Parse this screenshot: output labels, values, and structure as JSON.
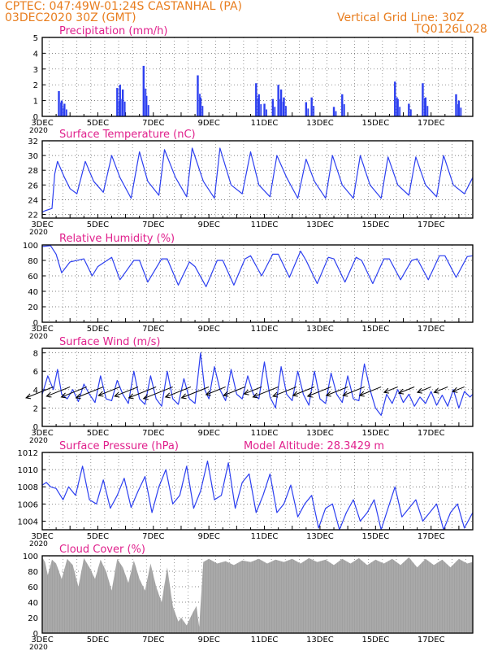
{
  "header": {
    "line1": "CPTEC:   047:49W-01:24S   CASTANHAL (PA)",
    "line2": "03DEC2020 30Z (GMT)",
    "grid_note": "Vertical Grid Line: 30Z",
    "run_code": "TQ0126L028"
  },
  "colors": {
    "header": "#e87d1e",
    "title": "#e0208c",
    "series": "#2c3ff0",
    "cloud": "#a0a0a0",
    "grid": "#555555"
  },
  "chart_data": [
    {
      "id": "precip",
      "type": "bar",
      "title": "Precipitation (mm/h)",
      "ylim": [
        0,
        5
      ],
      "yticks": [
        0,
        1,
        2,
        3,
        4,
        5
      ],
      "x_start_day": 3,
      "x_end_day": 18.5,
      "xtick_labels": [
        "3DEC",
        "5DEC",
        "7DEC",
        "9DEC",
        "11DEC",
        "13DEC",
        "15DEC",
        "17DEC"
      ],
      "xtick_days": [
        3,
        5,
        7,
        9,
        11,
        13,
        15,
        17
      ],
      "year_label": "2020",
      "events": [
        [
          3.6,
          1.6
        ],
        [
          3.7,
          1.0
        ],
        [
          3.8,
          0.8
        ],
        [
          5.7,
          1.8
        ],
        [
          5.8,
          2.0
        ],
        [
          5.9,
          1.7
        ],
        [
          6.65,
          3.2
        ],
        [
          6.75,
          1.3
        ],
        [
          8.6,
          2.6
        ],
        [
          8.7,
          1.2
        ],
        [
          10.7,
          2.1
        ],
        [
          10.8,
          1.4
        ],
        [
          11.0,
          0.8
        ],
        [
          11.3,
          1.1
        ],
        [
          11.5,
          2.0
        ],
        [
          11.6,
          1.7
        ],
        [
          11.7,
          1.2
        ],
        [
          12.5,
          0.9
        ],
        [
          12.7,
          1.2
        ],
        [
          13.5,
          0.6
        ],
        [
          13.8,
          1.4
        ],
        [
          15.7,
          2.2
        ],
        [
          15.8,
          1.1
        ],
        [
          16.2,
          0.8
        ],
        [
          16.7,
          2.1
        ],
        [
          16.8,
          1.2
        ],
        [
          17.9,
          1.4
        ],
        [
          18.0,
          1.0
        ]
      ]
    },
    {
      "id": "temp",
      "type": "line",
      "title": "Surface Temperature (nC)",
      "ylim": [
        21.5,
        32
      ],
      "yticks": [
        22,
        24,
        26,
        28,
        30,
        32
      ],
      "x_start_day": 3,
      "x_end_day": 18.5,
      "xtick_labels": [
        "3DEC",
        "5DEC",
        "7DEC",
        "9DEC",
        "11DEC",
        "13DEC",
        "15DEC",
        "17DEC"
      ],
      "xtick_days": [
        3,
        5,
        7,
        9,
        11,
        13,
        15,
        17
      ],
      "year_label": "2020",
      "x": [
        3.0,
        3.1,
        3.35,
        3.45,
        3.55,
        3.8,
        4.0,
        4.25,
        4.55,
        4.85,
        5.2,
        5.5,
        5.8,
        6.2,
        6.5,
        6.8,
        7.2,
        7.4,
        7.8,
        8.2,
        8.4,
        8.8,
        9.2,
        9.4,
        9.8,
        10.2,
        10.5,
        10.8,
        11.2,
        11.45,
        11.8,
        12.2,
        12.5,
        12.8,
        13.2,
        13.45,
        13.8,
        14.2,
        14.45,
        14.8,
        15.2,
        15.45,
        15.8,
        16.2,
        16.45,
        16.8,
        17.2,
        17.45,
        17.8,
        18.2,
        18.5
      ],
      "y": [
        22.3,
        22.5,
        22.8,
        27.5,
        29.2,
        27.0,
        25.5,
        24.8,
        29.2,
        26.5,
        25.0,
        30.0,
        27.0,
        24.2,
        30.5,
        26.5,
        24.6,
        30.8,
        27.0,
        24.4,
        31.0,
        26.5,
        24.2,
        31.0,
        26.0,
        24.8,
        30.5,
        26.0,
        24.4,
        30.0,
        27.0,
        24.2,
        29.5,
        26.5,
        24.2,
        30.0,
        26.0,
        24.2,
        30.0,
        26.0,
        24.2,
        29.8,
        26.0,
        24.6,
        29.8,
        26.0,
        24.4,
        30.0,
        26.0,
        24.8,
        27.0
      ]
    },
    {
      "id": "rh",
      "type": "line",
      "title": "Relative Humidity (%)",
      "ylim": [
        0,
        100
      ],
      "yticks": [
        0,
        20,
        40,
        60,
        80,
        100
      ],
      "x_start_day": 3,
      "x_end_day": 18.5,
      "xtick_labels": [
        "3DEC",
        "5DEC",
        "7DEC",
        "9DEC",
        "11DEC",
        "13DEC",
        "15DEC",
        "17DEC"
      ],
      "xtick_days": [
        3,
        5,
        7,
        9,
        11,
        13,
        15,
        17
      ],
      "year_label": "2020",
      "x": [
        3.0,
        3.3,
        3.5,
        3.7,
        4.0,
        4.5,
        4.8,
        5.0,
        5.5,
        5.8,
        6.3,
        6.5,
        6.8,
        7.3,
        7.5,
        7.9,
        8.3,
        8.5,
        8.9,
        9.3,
        9.5,
        9.9,
        10.3,
        10.5,
        10.9,
        11.3,
        11.5,
        11.9,
        12.3,
        12.5,
        12.9,
        13.3,
        13.5,
        13.9,
        14.3,
        14.5,
        14.9,
        15.3,
        15.5,
        15.9,
        16.3,
        16.5,
        16.9,
        17.3,
        17.5,
        17.9,
        18.3,
        18.5
      ],
      "y": [
        98,
        99,
        88,
        64,
        78,
        82,
        60,
        72,
        84,
        55,
        80,
        80,
        52,
        82,
        82,
        48,
        78,
        72,
        46,
        80,
        80,
        48,
        82,
        86,
        60,
        88,
        88,
        58,
        92,
        80,
        50,
        84,
        82,
        52,
        84,
        80,
        50,
        82,
        82,
        55,
        80,
        82,
        55,
        86,
        86,
        58,
        85,
        86
      ]
    },
    {
      "id": "wind",
      "type": "line",
      "title": "Surface Wind (m/s)",
      "ylim": [
        0,
        8.5
      ],
      "yticks": [
        0,
        2,
        4,
        6,
        8
      ],
      "x_start_day": 3,
      "x_end_day": 18.5,
      "xtick_labels": [
        "3DEC",
        "5DEC",
        "7DEC",
        "9DEC",
        "11DEC",
        "13DEC",
        "15DEC",
        "17DEC"
      ],
      "xtick_days": [
        3,
        5,
        7,
        9,
        11,
        13,
        15,
        17
      ],
      "year_label": "2020",
      "x": [
        3.0,
        3.2,
        3.4,
        3.55,
        3.7,
        3.9,
        4.1,
        4.3,
        4.5,
        4.7,
        4.9,
        5.1,
        5.3,
        5.5,
        5.7,
        5.9,
        6.1,
        6.3,
        6.5,
        6.7,
        6.9,
        7.1,
        7.3,
        7.5,
        7.7,
        7.9,
        8.1,
        8.3,
        8.5,
        8.7,
        8.85,
        9.0,
        9.2,
        9.4,
        9.6,
        9.8,
        10.0,
        10.2,
        10.4,
        10.6,
        10.8,
        11.0,
        11.2,
        11.4,
        11.6,
        11.8,
        12.0,
        12.2,
        12.4,
        12.6,
        12.8,
        13.0,
        13.2,
        13.4,
        13.6,
        13.8,
        14.0,
        14.2,
        14.4,
        14.6,
        14.8,
        15.0,
        15.2,
        15.4,
        15.6,
        15.8,
        16.0,
        16.2,
        16.4,
        16.6,
        16.8,
        17.0,
        17.2,
        17.4,
        17.6,
        17.8,
        18.0,
        18.2,
        18.4,
        18.5
      ],
      "y": [
        3.5,
        5.5,
        4.0,
        6.2,
        3.5,
        3.0,
        4.0,
        2.7,
        4.6,
        3.5,
        2.6,
        5.5,
        3.0,
        2.8,
        5.0,
        3.5,
        2.5,
        6.0,
        3.0,
        2.4,
        5.5,
        3.0,
        2.2,
        6.0,
        3.0,
        2.4,
        5.2,
        3.0,
        2.5,
        8.0,
        4.0,
        3.0,
        6.5,
        4.0,
        2.8,
        6.2,
        3.5,
        3.0,
        5.5,
        3.5,
        3.0,
        7.0,
        3.2,
        2.0,
        6.5,
        3.5,
        2.8,
        6.0,
        3.5,
        2.3,
        6.0,
        3.0,
        2.5,
        5.8,
        3.5,
        2.6,
        5.5,
        3.0,
        2.8,
        6.8,
        4.0,
        2.0,
        1.2,
        3.5,
        2.5,
        4.0,
        2.6,
        3.5,
        2.2,
        3.2,
        2.5,
        3.8,
        2.3,
        3.4,
        2.2,
        4.0,
        2.0,
        3.8,
        3.2,
        3.5
      ],
      "vectors": [
        [
          3.4,
          4.3,
          2.8
        ],
        [
          4.0,
          4.3,
          2.4
        ],
        [
          4.6,
          4.3,
          2.6
        ],
        [
          5.2,
          4.3,
          2.8
        ],
        [
          5.8,
          4.3,
          2.2
        ],
        [
          6.45,
          4.3,
          2.4
        ],
        [
          7.1,
          4.3,
          2.8
        ],
        [
          7.7,
          4.3,
          3.0
        ],
        [
          8.35,
          4.3,
          2.6
        ],
        [
          9.0,
          4.3,
          2.8
        ],
        [
          9.6,
          4.3,
          2.0
        ],
        [
          10.3,
          4.3,
          2.2
        ],
        [
          10.9,
          4.3,
          1.8
        ],
        [
          11.5,
          4.3,
          2.6
        ],
        [
          12.15,
          4.3,
          2.4
        ],
        [
          12.8,
          4.3,
          2.2
        ],
        [
          13.4,
          4.3,
          2.4
        ],
        [
          14.0,
          4.3,
          2.2
        ],
        [
          14.6,
          4.3,
          2.2
        ],
        [
          15.2,
          4.3,
          2.2
        ],
        [
          15.8,
          4.3,
          1.4
        ],
        [
          16.4,
          4.3,
          1.6
        ],
        [
          17.0,
          4.3,
          1.4
        ],
        [
          17.6,
          4.3,
          1.4
        ],
        [
          18.2,
          4.3,
          1.2
        ]
      ]
    },
    {
      "id": "pres",
      "type": "line",
      "title": "Surface Pressure (hPa)",
      "annotation": "Model Altitude: 28.3429  m",
      "ylim": [
        1003,
        1012
      ],
      "yticks": [
        1004,
        1006,
        1008,
        1010,
        1012
      ],
      "x_start_day": 3,
      "x_end_day": 18.5,
      "xtick_labels": [
        "3DEC",
        "5DEC",
        "7DEC",
        "9DEC",
        "11DEC",
        "13DEC",
        "15DEC",
        "17DEC"
      ],
      "xtick_days": [
        3,
        5,
        7,
        9,
        11,
        13,
        15,
        17
      ],
      "year_label": "2020",
      "x": [
        3.0,
        3.15,
        3.3,
        3.5,
        3.75,
        3.95,
        4.2,
        4.45,
        4.7,
        4.95,
        5.2,
        5.45,
        5.7,
        5.95,
        6.2,
        6.45,
        6.7,
        6.95,
        7.2,
        7.45,
        7.7,
        7.95,
        8.2,
        8.45,
        8.7,
        8.95,
        9.2,
        9.45,
        9.7,
        9.95,
        10.2,
        10.45,
        10.7,
        10.95,
        11.2,
        11.45,
        11.7,
        11.95,
        12.2,
        12.45,
        12.7,
        12.95,
        13.2,
        13.45,
        13.7,
        13.95,
        14.2,
        14.45,
        14.7,
        14.95,
        15.2,
        15.45,
        15.7,
        15.95,
        16.2,
        16.45,
        16.7,
        16.95,
        17.2,
        17.45,
        17.7,
        17.95,
        18.2,
        18.5
      ],
      "y": [
        1008.2,
        1008.5,
        1008.0,
        1007.8,
        1006.5,
        1008.0,
        1007.0,
        1010.4,
        1006.5,
        1006.0,
        1008.8,
        1005.5,
        1007.0,
        1009.0,
        1005.6,
        1007.5,
        1009.2,
        1005.0,
        1008.0,
        1010.0,
        1006.0,
        1007.0,
        1010.4,
        1005.5,
        1007.5,
        1011.0,
        1006.5,
        1007.0,
        1010.8,
        1005.5,
        1008.5,
        1009.5,
        1005.0,
        1007.0,
        1009.5,
        1005.0,
        1006.0,
        1008.2,
        1004.5,
        1006.0,
        1007.0,
        1003.2,
        1005.5,
        1006.0,
        1003.0,
        1005.0,
        1006.5,
        1004.0,
        1005.0,
        1006.5,
        1003.0,
        1005.5,
        1008.0,
        1004.5,
        1005.5,
        1006.5,
        1004.0,
        1005.0,
        1006.0,
        1003.0,
        1005.0,
        1006.0,
        1003.2,
        1005.0
      ]
    },
    {
      "id": "cloud",
      "type": "area",
      "title": "Cloud Cover (%)",
      "ylim": [
        0,
        100
      ],
      "yticks": [
        0,
        20,
        40,
        60,
        80,
        100
      ],
      "x_start_day": 3,
      "x_end_day": 18.5,
      "xtick_labels": [
        "3DEC",
        "5DEC",
        "7DEC",
        "9DEC",
        "11DEC",
        "13DEC",
        "15DEC",
        "17DEC"
      ],
      "xtick_days": [
        3,
        5,
        7,
        9,
        11,
        13,
        15,
        17
      ],
      "year_label": "2020",
      "x": [
        3.0,
        3.1,
        3.2,
        3.35,
        3.5,
        3.7,
        3.9,
        4.1,
        4.3,
        4.5,
        4.7,
        4.9,
        5.1,
        5.3,
        5.5,
        5.7,
        5.9,
        6.1,
        6.3,
        6.5,
        6.7,
        6.9,
        7.1,
        7.3,
        7.5,
        7.7,
        7.9,
        8.0,
        8.2,
        8.4,
        8.55,
        8.65,
        8.8,
        9.0,
        9.3,
        9.6,
        9.9,
        10.2,
        10.5,
        10.8,
        11.1,
        11.4,
        11.7,
        12.0,
        12.3,
        12.6,
        12.9,
        13.2,
        13.5,
        13.8,
        14.1,
        14.4,
        14.7,
        15.0,
        15.3,
        15.6,
        15.9,
        16.2,
        16.5,
        16.8,
        17.1,
        17.4,
        17.7,
        18.0,
        18.3,
        18.5
      ],
      "y": [
        98,
        92,
        75,
        95,
        90,
        70,
        96,
        88,
        60,
        97,
        85,
        70,
        95,
        80,
        55,
        96,
        85,
        65,
        94,
        70,
        55,
        90,
        60,
        40,
        85,
        35,
        15,
        20,
        10,
        25,
        35,
        8,
        92,
        96,
        90,
        93,
        88,
        94,
        92,
        96,
        90,
        95,
        92,
        96,
        90,
        97,
        92,
        95,
        88,
        96,
        90,
        97,
        88,
        95,
        90,
        96,
        88,
        98,
        85,
        96,
        88,
        95,
        85,
        96,
        90,
        92
      ]
    }
  ]
}
